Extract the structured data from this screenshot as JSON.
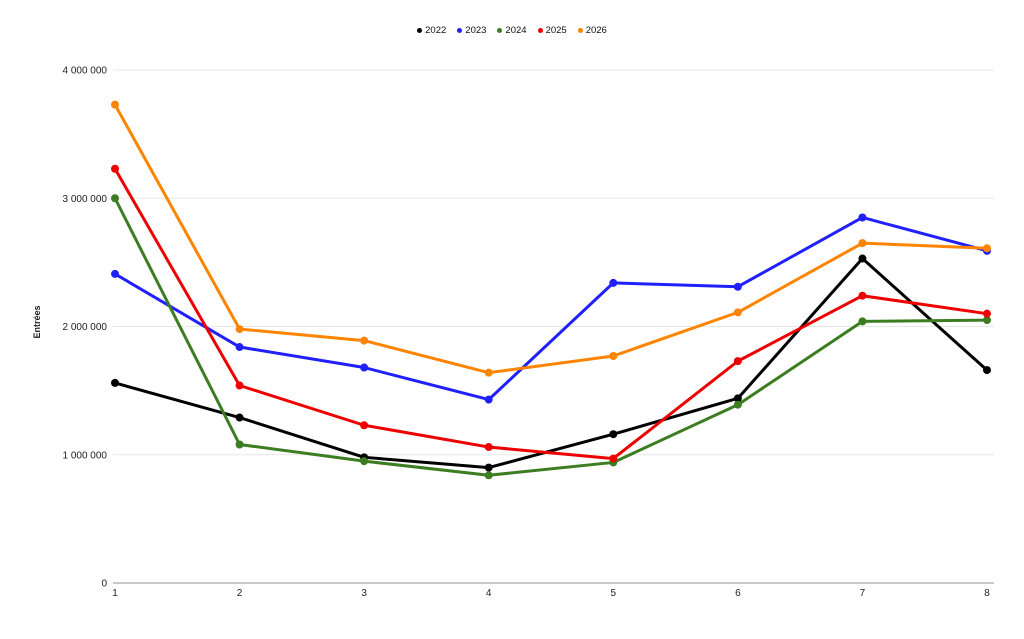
{
  "chart_data": {
    "type": "line",
    "title": "",
    "xlabel": "",
    "ylabel": "Entrées",
    "x": [
      "1",
      "2",
      "3",
      "4",
      "5",
      "6",
      "7",
      "8"
    ],
    "series": [
      {
        "name": "2022",
        "color": "#000000",
        "values": [
          1560000,
          1290000,
          980000,
          900000,
          1160000,
          1440000,
          2530000,
          1660000
        ]
      },
      {
        "name": "2023",
        "color": "#2020ff",
        "values": [
          2410000,
          1840000,
          1680000,
          1430000,
          2340000,
          2310000,
          2850000,
          2590000
        ]
      },
      {
        "name": "2024",
        "color": "#3c7d21",
        "values": [
          3000000,
          1080000,
          950000,
          840000,
          940000,
          1390000,
          2040000,
          2050000
        ]
      },
      {
        "name": "2025",
        "color": "#ee0000",
        "values": [
          3230000,
          1540000,
          1230000,
          1060000,
          970000,
          1730000,
          2240000,
          2100000
        ]
      },
      {
        "name": "2026",
        "color": "#ff8400",
        "values": [
          3730000,
          1980000,
          1890000,
          1640000,
          1770000,
          2110000,
          2650000,
          2610000
        ]
      }
    ],
    "ylim": [
      0,
      4000000
    ],
    "y_ticks": [
      0,
      1000000,
      2000000,
      3000000,
      4000000
    ],
    "y_tick_labels": [
      "0",
      "1 000 000",
      "2 000 000",
      "3 000 000",
      "4 000 000"
    ],
    "grid": true,
    "legend_position": "top-center"
  }
}
